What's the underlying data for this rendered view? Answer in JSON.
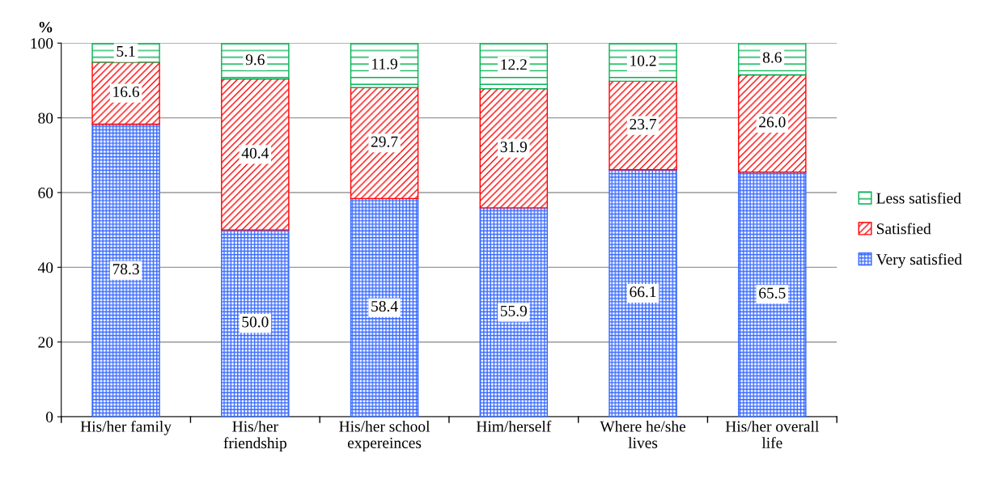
{
  "chart_data": {
    "type": "bar",
    "stacked": true,
    "ylabel": "%",
    "categories": [
      "His/her family",
      "His/her\nfriendship",
      "His/her school\nexpereinces",
      "Him/herself",
      "Where he/she\nlives",
      "His/her overall\nlife"
    ],
    "series": [
      {
        "name": "Very satisfied",
        "color": "#3366ff",
        "values": [
          78.3,
          50.0,
          58.4,
          55.9,
          66.1,
          65.5
        ],
        "value_labels": [
          "78.3",
          "50.0",
          "58.4",
          "55.9",
          "66.1",
          "65.5"
        ]
      },
      {
        "name": "Satisfied",
        "color": "#ff0000",
        "values": [
          16.6,
          40.4,
          29.7,
          31.9,
          23.7,
          26.0
        ],
        "value_labels": [
          "16.6",
          "40.4",
          "29.7",
          "31.9",
          "23.7",
          "26.0"
        ]
      },
      {
        "name": "Less satisfied",
        "color": "#00b050",
        "values": [
          5.1,
          9.6,
          11.9,
          12.2,
          10.2,
          8.6
        ],
        "value_labels": [
          "5.1",
          "9.6",
          "11.9",
          "12.2",
          "10.2",
          "8.6"
        ]
      }
    ],
    "ylim": [
      0,
      100
    ],
    "yticks": [
      0,
      20,
      40,
      60,
      80,
      100
    ],
    "grid": "y",
    "legend": "right"
  }
}
